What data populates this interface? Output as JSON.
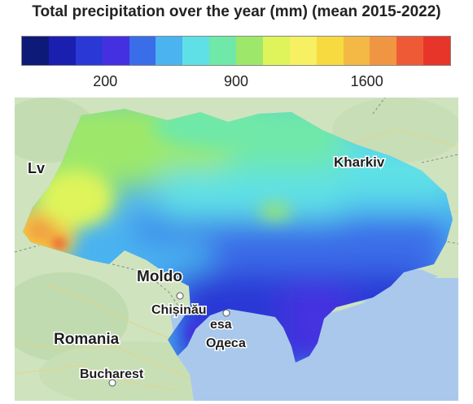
{
  "title": "Total precipitation over the year (mm) (mean 2015-2022)",
  "colorbar": {
    "colors": [
      "#0d1a78",
      "#1a1fb0",
      "#2a38d6",
      "#4430e0",
      "#3a6de8",
      "#4ab3f0",
      "#5fe0e6",
      "#6fe8a8",
      "#9de86a",
      "#dff45a",
      "#f6f062",
      "#f6da3f",
      "#f4b845",
      "#f09542",
      "#ef5a36",
      "#e8352a"
    ],
    "tick_labels": [
      "200",
      "900",
      "1600"
    ],
    "tick_values": [
      200,
      900,
      1600
    ],
    "min": -250,
    "max": 2050
  },
  "map": {
    "labels": {
      "lviv": "Lv",
      "kharkiv": "Kharkiv",
      "moldova": "Moldo",
      "chisinau": "Chișinău",
      "odesa_partial": "esa",
      "odesa": "Одеса",
      "romania": "Romania",
      "bucharest": "Bucharest"
    },
    "colors": {
      "land": "#cfe3bf",
      "land_dark": "#b7d6a4",
      "sea": "#aac8ec",
      "border": "#888888"
    }
  }
}
